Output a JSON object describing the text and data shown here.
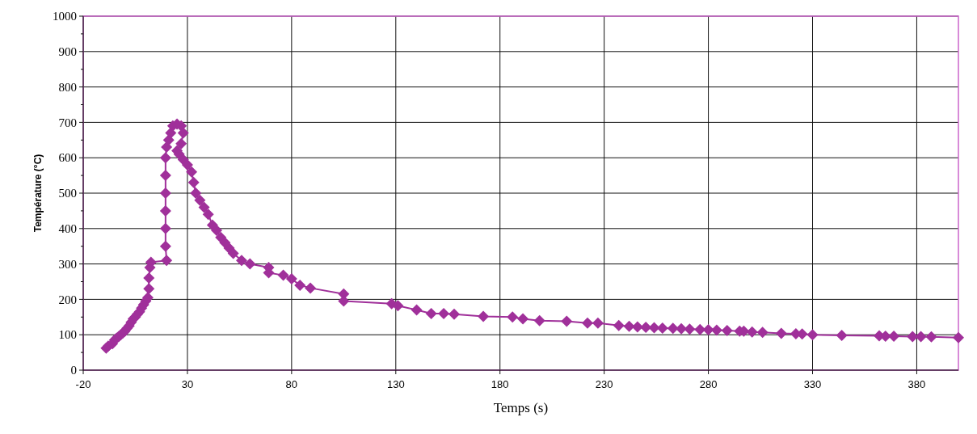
{
  "chart_data": {
    "type": "line",
    "xlabel": "Temps (s)",
    "ylabel": "Température (°C)",
    "marker": "diamond",
    "line_style": "solid",
    "grid": true,
    "xlim": [
      -20,
      400
    ],
    "xticks": [
      -20,
      30,
      80,
      130,
      180,
      230,
      280,
      330,
      380
    ],
    "ylim": [
      0,
      1000
    ],
    "yticks": [
      0,
      100,
      200,
      300,
      400,
      500,
      600,
      700,
      800,
      900,
      1000
    ],
    "series": [
      {
        "color": "#a0309a",
        "x": [
          -9,
          -8,
          -6,
          -5,
          -4,
          -3,
          -2,
          -1,
          0,
          1,
          2,
          3,
          4,
          5,
          6,
          7,
          8,
          9,
          10,
          11,
          11.5,
          11.5,
          12,
          12.5,
          20,
          19.5,
          19.5,
          19.5,
          19.5,
          19.5,
          19.5,
          20,
          21,
          22,
          23,
          25,
          27,
          28,
          27,
          25,
          26,
          28,
          30,
          32,
          33,
          34,
          36,
          38,
          40,
          42,
          44,
          46,
          48,
          50,
          52,
          56,
          60,
          69,
          69,
          76,
          80,
          84,
          89,
          105,
          105,
          128,
          131,
          140,
          147,
          153,
          158,
          172,
          186,
          191,
          199,
          212,
          222,
          227,
          237,
          242,
          246,
          250,
          254,
          258,
          263,
          267,
          271,
          276,
          280,
          284,
          289,
          295,
          297,
          301,
          306,
          315,
          322,
          325,
          330,
          344,
          362,
          365,
          369,
          378,
          382,
          387,
          400
        ],
        "values": [
          62,
          68,
          75,
          85,
          90,
          95,
          100,
          105,
          110,
          118,
          125,
          135,
          145,
          150,
          158,
          165,
          175,
          185,
          195,
          205,
          230,
          260,
          290,
          305,
          310,
          350,
          400,
          450,
          500,
          550,
          600,
          630,
          650,
          670,
          690,
          695,
          690,
          670,
          640,
          620,
          610,
          595,
          580,
          560,
          530,
          500,
          480,
          460,
          440,
          410,
          395,
          375,
          360,
          345,
          330,
          310,
          300,
          290,
          275,
          268,
          258,
          240,
          232,
          215,
          195,
          188,
          182,
          170,
          160,
          160,
          158,
          152,
          150,
          145,
          140,
          138,
          133,
          133,
          126,
          124,
          122,
          121,
          120,
          119,
          118,
          117,
          116,
          115,
          114,
          113,
          112,
          110,
          110,
          108,
          107,
          104,
          103,
          102,
          100,
          98,
          97,
          96,
          96,
          95,
          95,
          94,
          92
        ]
      }
    ]
  }
}
